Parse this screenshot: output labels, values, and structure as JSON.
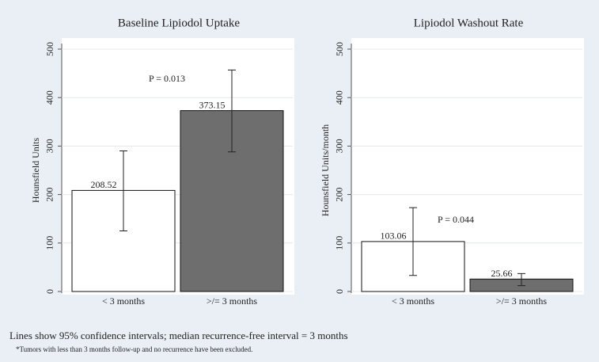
{
  "chart_data": [
    {
      "type": "bar",
      "title": "Baseline Lipiodol Uptake",
      "y_label": "Hounsfield Units",
      "categories": [
        "< 3 months",
        ">/= 3 months"
      ],
      "values": [
        208.52,
        373.15
      ],
      "ci_low": [
        125,
        288
      ],
      "ci_high": [
        290,
        457
      ],
      "colors": [
        "#ffffff",
        "#6e6e6e"
      ],
      "ylim": [
        0,
        500
      ],
      "yticks": [
        0,
        100,
        200,
        300,
        400,
        500
      ],
      "grid": true,
      "annotation": "P = 0.013"
    },
    {
      "type": "bar",
      "title": "Lipiodol Washout Rate",
      "y_label": "Hounsfield Units/month",
      "categories": [
        "< 3 months",
        ">/= 3 months"
      ],
      "values": [
        103.06,
        25.66
      ],
      "ci_low": [
        33,
        12
      ],
      "ci_high": [
        173,
        37
      ],
      "colors": [
        "#ffffff",
        "#6e6e6e"
      ],
      "ylim": [
        0,
        500
      ],
      "yticks": [
        0,
        100,
        200,
        300,
        400,
        500
      ],
      "grid": true,
      "annotation": "P = 0.044"
    }
  ],
  "notes": [
    "Lines show 95% confidence intervals; median recurrence-free interval = 3 months",
    "*Tumors with less than 3 months follow-up and no recurrence have been excluded."
  ]
}
